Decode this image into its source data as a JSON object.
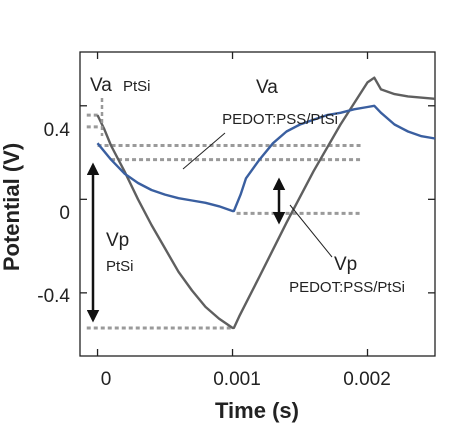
{
  "chart_data": {
    "type": "line",
    "xlabel": "Time (s)",
    "ylabel": "Potential (V)",
    "xlim": [
      -0.00013,
      0.0025
    ],
    "ylim": [
      -0.67,
      0.63
    ],
    "x_ticks": [
      {
        "value": 0,
        "label": "0"
      },
      {
        "value": 0.001,
        "label": "0.001"
      },
      {
        "value": 0.002,
        "label": "0.002"
      }
    ],
    "y_ticks": [
      {
        "value": 0.4,
        "label": "0.4"
      },
      {
        "value": 0,
        "label": "0"
      },
      {
        "value": -0.4,
        "label": "-0.4"
      }
    ],
    "grid": false,
    "series": [
      {
        "color": "#5f5f5f",
        "points": [
          [
            0.0,
            0.36
          ],
          [
            5e-05,
            0.3
          ],
          [
            0.0001,
            0.23
          ],
          [
            0.0002,
            0.12
          ],
          [
            0.0003,
            0.0
          ],
          [
            0.0004,
            -0.11
          ],
          [
            0.0005,
            -0.21
          ],
          [
            0.0006,
            -0.31
          ],
          [
            0.0007,
            -0.39
          ],
          [
            0.0008,
            -0.46
          ],
          [
            0.0009,
            -0.51
          ],
          [
            0.001,
            -0.55
          ],
          [
            0.00101,
            -0.55
          ],
          [
            0.00105,
            -0.5
          ],
          [
            0.0012,
            -0.33
          ],
          [
            0.0014,
            -0.1
          ],
          [
            0.0016,
            0.12
          ],
          [
            0.0018,
            0.32
          ],
          [
            0.002,
            0.5
          ],
          [
            0.00205,
            0.52
          ],
          [
            0.0021,
            0.47
          ],
          [
            0.0022,
            0.45
          ],
          [
            0.0023,
            0.44
          ],
          [
            0.0025,
            0.43
          ]
        ]
      },
      {
        "color": "#3a5fa0",
        "points": [
          [
            0.0,
            0.24
          ],
          [
            0.0001,
            0.17
          ],
          [
            0.0002,
            0.11
          ],
          [
            0.0003,
            0.07
          ],
          [
            0.0004,
            0.04
          ],
          [
            0.0005,
            0.02
          ],
          [
            0.0006,
            0.005
          ],
          [
            0.0007,
            -0.005
          ],
          [
            0.0008,
            -0.015
          ],
          [
            0.0009,
            -0.03
          ],
          [
            0.001,
            -0.05
          ],
          [
            0.00101,
            -0.05
          ],
          [
            0.00106,
            0.02
          ],
          [
            0.0011,
            0.09
          ],
          [
            0.0012,
            0.17
          ],
          [
            0.0013,
            0.24
          ],
          [
            0.0014,
            0.29
          ],
          [
            0.0015,
            0.32
          ],
          [
            0.0016,
            0.34
          ],
          [
            0.0017,
            0.36
          ],
          [
            0.0018,
            0.37
          ],
          [
            0.0019,
            0.385
          ],
          [
            0.002,
            0.395
          ],
          [
            0.00205,
            0.4
          ],
          [
            0.0021,
            0.37
          ],
          [
            0.0022,
            0.32
          ],
          [
            0.0023,
            0.29
          ],
          [
            0.0024,
            0.27
          ],
          [
            0.0025,
            0.26
          ]
        ]
      }
    ],
    "reference_lines": [
      {
        "y": 0.36,
        "x_from": -8e-05,
        "x_to": 2e-05
      },
      {
        "y": 0.31,
        "x_from": -8e-05,
        "x_to": 2e-05
      },
      {
        "y": 0.23,
        "x_from": 0.0,
        "x_to": 0.00195
      },
      {
        "y": 0.17,
        "x_from": 0.0001,
        "x_to": 0.00195
      },
      {
        "y": -0.06,
        "x_from": 0.00103,
        "x_to": 0.00195
      },
      {
        "y": -0.55,
        "x_from": -8e-05,
        "x_to": 0.001
      }
    ],
    "annotations": [
      {
        "id": "va-ptsi",
        "main": "Va",
        "sub": "PtSi"
      },
      {
        "id": "va-pedot",
        "main": "Va",
        "sub": "PEDOT:PSS/PtSi"
      },
      {
        "id": "vp-ptsi",
        "main": "Vp",
        "sub": "PtSi"
      },
      {
        "id": "vp-pedot",
        "main": "Vp",
        "sub": "PEDOT:PSS/PtSi"
      }
    ]
  }
}
